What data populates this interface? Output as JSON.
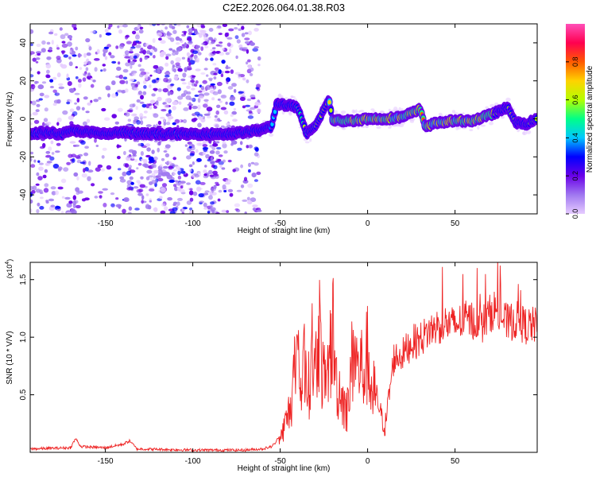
{
  "title": "C2E2.2026.064.01.38.R03",
  "chart_data": [
    {
      "type": "heatmap",
      "xlabel": "Height of straight line (km)",
      "ylabel": "Frequency (Hz)",
      "xlim": [
        -193,
        97
      ],
      "ylim": [
        -50,
        50
      ],
      "xticks": [
        -150,
        -100,
        -50,
        0,
        50
      ],
      "yticks": [
        -40,
        -20,
        0,
        20,
        40
      ],
      "colorbar": {
        "label": "Normalized spectral amplitude",
        "range": [
          0,
          1
        ],
        "ticks": [
          "0.0",
          "0.2",
          "0.4",
          "0.6",
          "0.8"
        ],
        "colors": [
          "#e6ccff",
          "#a078f0",
          "#6a00e8",
          "#0000ff",
          "#00c8ff",
          "#00ff88",
          "#b4ff00",
          "#ffd200",
          "#ff5a00",
          "#ff0050",
          "#ff4fb8"
        ]
      },
      "features": {
        "noise_region_km": [
          -193,
          -62
        ],
        "noise_density_segments": [
          {
            "from": -193,
            "to": -158,
            "density": 0.55
          },
          {
            "from": -158,
            "to": -138,
            "density": 0.35
          },
          {
            "from": -138,
            "to": -85,
            "density": 1.0
          },
          {
            "from": -85,
            "to": -62,
            "density": 0.6
          }
        ],
        "ridge": [
          [
            -193,
            -8
          ],
          [
            -185,
            -7
          ],
          [
            -175,
            -8
          ],
          [
            -168,
            -6
          ],
          [
            -160,
            -7
          ],
          [
            -150,
            -8
          ],
          [
            -140,
            -7
          ],
          [
            -130,
            -8
          ],
          [
            -120,
            -8
          ],
          [
            -110,
            -8
          ],
          [
            -100,
            -8
          ],
          [
            -90,
            -8
          ],
          [
            -80,
            -8
          ],
          [
            -70,
            -7
          ],
          [
            -62,
            -6
          ],
          [
            -55,
            -4
          ],
          [
            -52,
            8
          ],
          [
            -45,
            7
          ],
          [
            -40,
            6
          ],
          [
            -35,
            -8
          ],
          [
            -30,
            -4
          ],
          [
            -25,
            5
          ],
          [
            -22,
            10
          ],
          [
            -20,
            -1
          ],
          [
            -10,
            -1
          ],
          [
            0,
            0
          ],
          [
            10,
            0
          ],
          [
            20,
            1
          ],
          [
            30,
            5
          ],
          [
            33,
            -4
          ],
          [
            40,
            -2
          ],
          [
            50,
            -1
          ],
          [
            60,
            -1
          ],
          [
            70,
            2
          ],
          [
            80,
            6
          ],
          [
            85,
            -2
          ],
          [
            90,
            -3
          ],
          [
            97,
            0
          ]
        ],
        "ridge_peak_km": [
          -20,
          72
        ]
      }
    },
    {
      "type": "line",
      "xlabel": "Height of straight line (km)",
      "ylabel": "SNR (10 * V/V)",
      "multiplier": "(x10",
      "multiplier_exp": "4",
      "xlim": [
        -193,
        97
      ],
      "ylim": [
        0,
        1.65
      ],
      "xticks": [
        -150,
        -100,
        -50,
        0,
        50
      ],
      "yticks": [
        "0.5",
        "1.0",
        "1.5"
      ],
      "color": "#ee2222",
      "series": [
        {
          "x": [
            -193,
            -170,
            -167,
            -164,
            -150,
            -140,
            -136,
            -132,
            -100,
            -70,
            -60,
            -55,
            -50,
            -47,
            -44,
            -42,
            -40,
            -38,
            -36,
            -34,
            -32,
            -30,
            -28,
            -26,
            -24,
            -22,
            -20,
            -18,
            -16,
            -14,
            -12,
            -10,
            -8,
            -6,
            -4,
            -2,
            0,
            2,
            5,
            8,
            10,
            15,
            20,
            25,
            30,
            35,
            40,
            45,
            50,
            55,
            60,
            65,
            70,
            72,
            75,
            80,
            85,
            90,
            97
          ],
          "y": [
            0.03,
            0.04,
            0.12,
            0.05,
            0.04,
            0.07,
            0.1,
            0.03,
            0.02,
            0.02,
            0.03,
            0.05,
            0.12,
            0.25,
            0.4,
            0.65,
            0.75,
            0.55,
            0.85,
            0.5,
            0.95,
            0.62,
            1.15,
            0.7,
            0.55,
            0.75,
            1.1,
            0.62,
            0.55,
            0.45,
            0.35,
            0.58,
            0.95,
            0.72,
            0.75,
            0.7,
            0.85,
            0.55,
            0.5,
            0.3,
            0.22,
            0.82,
            0.85,
            0.95,
            0.98,
            1.05,
            1.1,
            1.12,
            1.1,
            1.15,
            1.15,
            1.1,
            1.2,
            1.25,
            1.2,
            1.12,
            1.15,
            1.1,
            1.1
          ]
        }
      ]
    }
  ]
}
